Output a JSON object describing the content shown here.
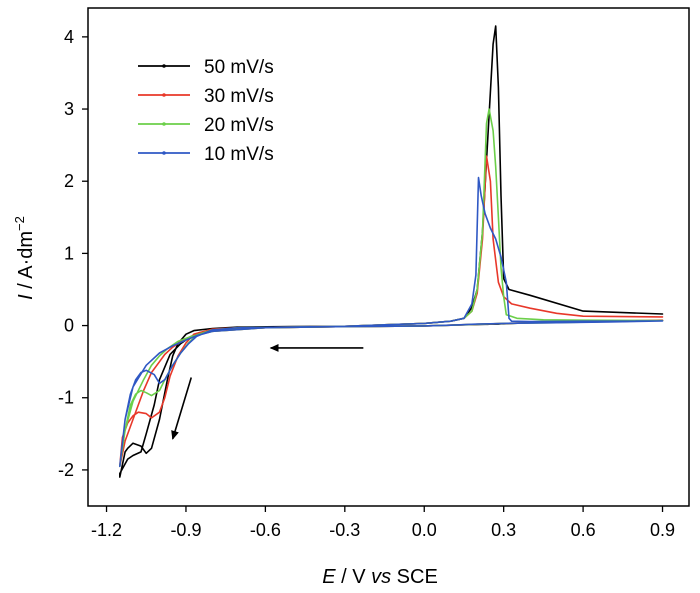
{
  "chart_data": {
    "type": "line",
    "title": "",
    "xlabel": {
      "italic": "E",
      "rest": " / V ",
      "italic2": "vs",
      "rest2": " SCE"
    },
    "ylabel": {
      "italic": "I",
      "rest": " / A·dm",
      "sup": "−2"
    },
    "xlim": [
      -1.27,
      1.0
    ],
    "ylim": [
      -2.5,
      4.4
    ],
    "xticks": [
      -1.2,
      -0.9,
      -0.6,
      -0.3,
      0.0,
      0.3,
      0.6,
      0.9
    ],
    "xtick_labels": [
      "-1.2",
      "-0.9",
      "-0.6",
      "-0.3",
      "0.0",
      "0.3",
      "0.6",
      "0.9"
    ],
    "yticks": [
      -2,
      -1,
      0,
      1,
      2,
      3,
      4
    ],
    "ytick_labels": [
      "-2",
      "-1",
      "0",
      "1",
      "2",
      "3",
      "4"
    ],
    "grid": false,
    "legend_position": "top-left",
    "annotations": [
      {
        "type": "arrow",
        "from": [
          -0.23,
          -0.31
        ],
        "to": [
          -0.58,
          -0.31
        ]
      },
      {
        "type": "arrow",
        "from": [
          -0.88,
          -0.72
        ],
        "to": [
          -0.95,
          -1.57
        ]
      }
    ],
    "series": [
      {
        "name": "50 mV/s",
        "color": "#000000",
        "x": [
          0.9,
          0.7,
          0.5,
          0.4,
          0.33,
          0.3,
          0.29,
          0.28,
          0.27,
          0.26,
          0.25,
          0.24,
          0.23,
          0.21,
          0.19,
          0.15,
          0.1,
          0.0,
          -0.3,
          -0.6,
          -0.8,
          -0.85,
          -0.88,
          -0.92,
          -0.96,
          -1.0,
          -1.02,
          -1.05,
          -1.07,
          -1.1,
          -1.12,
          -1.15,
          -1.15,
          -1.13,
          -1.12,
          -1.1,
          -1.07,
          -1.05,
          -1.03,
          -1.0,
          -0.97,
          -0.95,
          -0.93,
          -0.9,
          -0.87,
          -0.8,
          -0.7,
          -0.5,
          -0.3,
          0.0,
          0.1,
          0.15,
          0.18,
          0.2,
          0.22,
          0.24,
          0.26,
          0.27,
          0.28,
          0.29,
          0.3,
          0.32,
          0.4,
          0.6,
          0.9
        ],
        "y": [
          0.07,
          0.055,
          0.045,
          0.04,
          0.03,
          0.025,
          0.025,
          0.02,
          0.02,
          0.02,
          0.02,
          0.018,
          0.017,
          0.015,
          0.013,
          0.01,
          0.005,
          -0.005,
          -0.015,
          -0.03,
          -0.06,
          -0.1,
          -0.15,
          -0.25,
          -0.4,
          -0.75,
          -1.1,
          -1.5,
          -1.75,
          -1.8,
          -1.85,
          -2.05,
          -2.1,
          -1.75,
          -1.7,
          -1.63,
          -1.67,
          -1.77,
          -1.7,
          -1.3,
          -0.75,
          -0.42,
          -0.25,
          -0.12,
          -0.07,
          -0.04,
          -0.02,
          -0.015,
          -0.01,
          0.03,
          0.06,
          0.1,
          0.25,
          0.5,
          1.3,
          2.6,
          3.9,
          4.15,
          3.3,
          1.8,
          0.65,
          0.5,
          0.42,
          0.2,
          0.16
        ]
      },
      {
        "name": "30 mV/s",
        "color": "#e8382a",
        "x": [
          0.9,
          0.7,
          0.5,
          0.3,
          0.26,
          0.22,
          0.1,
          0.0,
          -0.3,
          -0.6,
          -0.8,
          -0.88,
          -0.92,
          -0.95,
          -0.98,
          -1.0,
          -1.03,
          -1.06,
          -1.1,
          -1.13,
          -1.15,
          -1.14,
          -1.12,
          -1.1,
          -1.08,
          -1.05,
          -1.03,
          -1.0,
          -0.98,
          -0.96,
          -0.93,
          -0.9,
          -0.87,
          -0.8,
          -0.7,
          -0.5,
          -0.3,
          0.0,
          0.1,
          0.15,
          0.18,
          0.2,
          0.22,
          0.235,
          0.25,
          0.26,
          0.28,
          0.3,
          0.33,
          0.4,
          0.5,
          0.6,
          0.9
        ],
        "y": [
          0.075,
          0.06,
          0.045,
          0.03,
          0.025,
          0.02,
          0.005,
          -0.005,
          -0.015,
          -0.03,
          -0.08,
          -0.15,
          -0.22,
          -0.3,
          -0.4,
          -0.5,
          -0.65,
          -0.9,
          -1.3,
          -1.6,
          -1.95,
          -1.55,
          -1.35,
          -1.25,
          -1.2,
          -1.22,
          -1.28,
          -1.2,
          -1.0,
          -0.7,
          -0.42,
          -0.24,
          -0.12,
          -0.05,
          -0.03,
          -0.02,
          -0.01,
          0.03,
          0.06,
          0.1,
          0.2,
          0.45,
          1.2,
          2.35,
          2.0,
          1.2,
          0.6,
          0.4,
          0.3,
          0.24,
          0.17,
          0.13,
          0.12
        ]
      },
      {
        "name": "20 mV/s",
        "color": "#6ccf4a",
        "x": [
          0.9,
          0.7,
          0.5,
          0.3,
          0.26,
          0.22,
          0.1,
          0.0,
          -0.3,
          -0.6,
          -0.8,
          -0.88,
          -0.93,
          -0.97,
          -1.0,
          -1.03,
          -1.06,
          -1.1,
          -1.13,
          -1.15,
          -1.13,
          -1.11,
          -1.09,
          -1.07,
          -1.05,
          -1.03,
          -1.0,
          -0.98,
          -0.95,
          -0.92,
          -0.89,
          -0.86,
          -0.8,
          -0.7,
          -0.5,
          -0.3,
          0.0,
          0.1,
          0.15,
          0.18,
          0.2,
          0.22,
          0.235,
          0.245,
          0.26,
          0.27,
          0.28,
          0.29,
          0.3,
          0.31,
          0.35,
          0.45,
          0.6,
          0.9
        ],
        "y": [
          0.07,
          0.055,
          0.04,
          0.03,
          0.025,
          0.02,
          0.005,
          -0.005,
          -0.015,
          -0.03,
          -0.08,
          -0.15,
          -0.22,
          -0.32,
          -0.42,
          -0.55,
          -0.75,
          -1.05,
          -1.45,
          -1.95,
          -1.45,
          -1.1,
          -0.95,
          -0.9,
          -0.93,
          -0.97,
          -0.9,
          -0.75,
          -0.55,
          -0.38,
          -0.24,
          -0.13,
          -0.06,
          -0.03,
          -0.02,
          -0.01,
          0.03,
          0.06,
          0.1,
          0.2,
          0.5,
          1.3,
          2.8,
          3.0,
          2.7,
          2.2,
          1.5,
          0.8,
          0.4,
          0.15,
          0.1,
          0.08,
          0.075,
          0.07
        ]
      },
      {
        "name": "10 mV/s",
        "color": "#2f58c4",
        "x": [
          0.9,
          0.7,
          0.5,
          0.3,
          0.25,
          0.2,
          0.1,
          0.0,
          -0.3,
          -0.6,
          -0.8,
          -0.86,
          -0.9,
          -0.95,
          -1.0,
          -1.05,
          -1.1,
          -1.13,
          -1.15,
          -1.13,
          -1.11,
          -1.09,
          -1.07,
          -1.05,
          -1.02,
          -1.0,
          -0.98,
          -0.95,
          -0.92,
          -0.89,
          -0.86,
          -0.8,
          -0.7,
          -0.5,
          -0.3,
          0.0,
          0.1,
          0.15,
          0.18,
          0.195,
          0.205,
          0.215,
          0.23,
          0.25,
          0.27,
          0.29,
          0.31,
          0.32,
          0.33,
          0.4,
          0.6,
          0.9
        ],
        "y": [
          0.065,
          0.05,
          0.04,
          0.03,
          0.025,
          0.02,
          0.005,
          -0.005,
          -0.015,
          -0.03,
          -0.08,
          -0.14,
          -0.2,
          -0.28,
          -0.38,
          -0.55,
          -0.85,
          -1.3,
          -1.95,
          -1.3,
          -0.95,
          -0.75,
          -0.65,
          -0.62,
          -0.68,
          -0.8,
          -0.75,
          -0.55,
          -0.38,
          -0.25,
          -0.15,
          -0.06,
          -0.03,
          -0.02,
          -0.01,
          0.03,
          0.06,
          0.1,
          0.3,
          0.7,
          2.05,
          1.8,
          1.55,
          1.35,
          1.2,
          0.95,
          0.6,
          0.1,
          0.06,
          0.055,
          0.06,
          0.065
        ]
      }
    ]
  }
}
